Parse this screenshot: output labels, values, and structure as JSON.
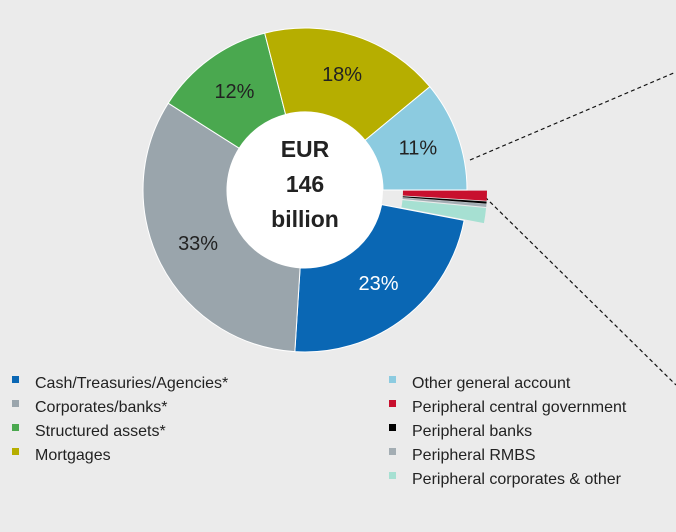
{
  "chart_data": {
    "type": "donut",
    "center_label": [
      "EUR",
      "146",
      "billion"
    ],
    "categories": [
      "Cash/Treasuries/Agencies*",
      "Corporates/banks*",
      "Structured assets*",
      "Mortgages",
      "Other general account",
      "Peripheral central government",
      "Peripheral banks",
      "Peripheral RMBS",
      "Peripheral corporates & other"
    ],
    "values": [
      23,
      33,
      12,
      18,
      11,
      1.0,
      0.2,
      0.3,
      1.5
    ],
    "value_labels": [
      "23%",
      "33%",
      "12%",
      "18%",
      "11%",
      null,
      null,
      null,
      null
    ],
    "colors": [
      "#0a67b4",
      "#9aa5ac",
      "#4aa84f",
      "#b6ae00",
      "#8ccbe0",
      "#c8102e",
      "#000000",
      "#a3adb3",
      "#a6e0d2"
    ],
    "label_colors": [
      "#ffffff",
      "#222222",
      "#222222",
      "#222222",
      "#222222",
      null,
      null,
      null,
      null
    ],
    "exploded": [
      false,
      false,
      false,
      false,
      false,
      true,
      true,
      true,
      true
    ]
  }
}
